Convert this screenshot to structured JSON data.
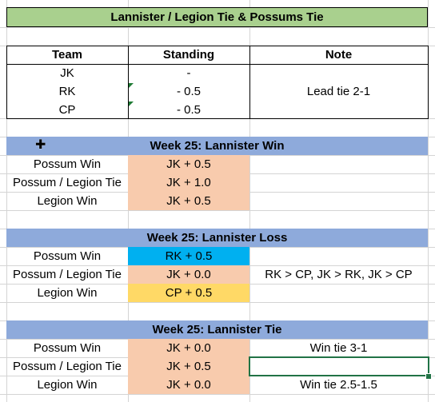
{
  "title": "Lannister / Legion Tie & Possums Tie",
  "standings": {
    "headers": {
      "team": "Team",
      "standing": "Standing",
      "note": "Note"
    },
    "rows": [
      {
        "team": "JK",
        "standing": "-",
        "note": ""
      },
      {
        "team": "RK",
        "standing": "- 0.5",
        "note": "Lead tie 2-1"
      },
      {
        "team": "CP",
        "standing": "- 0.5",
        "note": ""
      }
    ]
  },
  "sections": [
    {
      "heading": "Week 25:  Lannister Win",
      "rows": [
        {
          "scenario": "Possum Win",
          "result": "JK + 0.5",
          "note": ""
        },
        {
          "scenario": "Possum / Legion Tie",
          "result": "JK + 1.0",
          "note": ""
        },
        {
          "scenario": "Legion Win",
          "result": "JK + 0.5",
          "note": ""
        }
      ]
    },
    {
      "heading": "Week 25:  Lannister Loss",
      "rows": [
        {
          "scenario": "Possum Win",
          "result": "RK + 0.5",
          "note": ""
        },
        {
          "scenario": "Possum / Legion Tie",
          "result": "JK + 0.0",
          "note": "RK > CP, JK > RK, JK > CP"
        },
        {
          "scenario": "Legion Win",
          "result": "CP + 0.5",
          "note": ""
        }
      ]
    },
    {
      "heading": "Week 25:  Lannister Tie",
      "rows": [
        {
          "scenario": "Possum Win",
          "result": "JK + 0.0",
          "note": "Win tie 3-1"
        },
        {
          "scenario": "Possum / Legion Tie",
          "result": "JK + 0.5",
          "note": ""
        },
        {
          "scenario": "Legion Win",
          "result": "JK + 0.0",
          "note": "Win tie 2.5-1.5"
        }
      ]
    }
  ],
  "colors": {
    "title_fill": "#a9d08e",
    "section_fill": "#8eaadb",
    "result_fill": "#f8cbad",
    "rk_fill": "#00b0f0",
    "cp_fill": "#ffd966",
    "selection": "#217346"
  },
  "icons": {
    "cursor": "cell-select-cross-icon"
  }
}
